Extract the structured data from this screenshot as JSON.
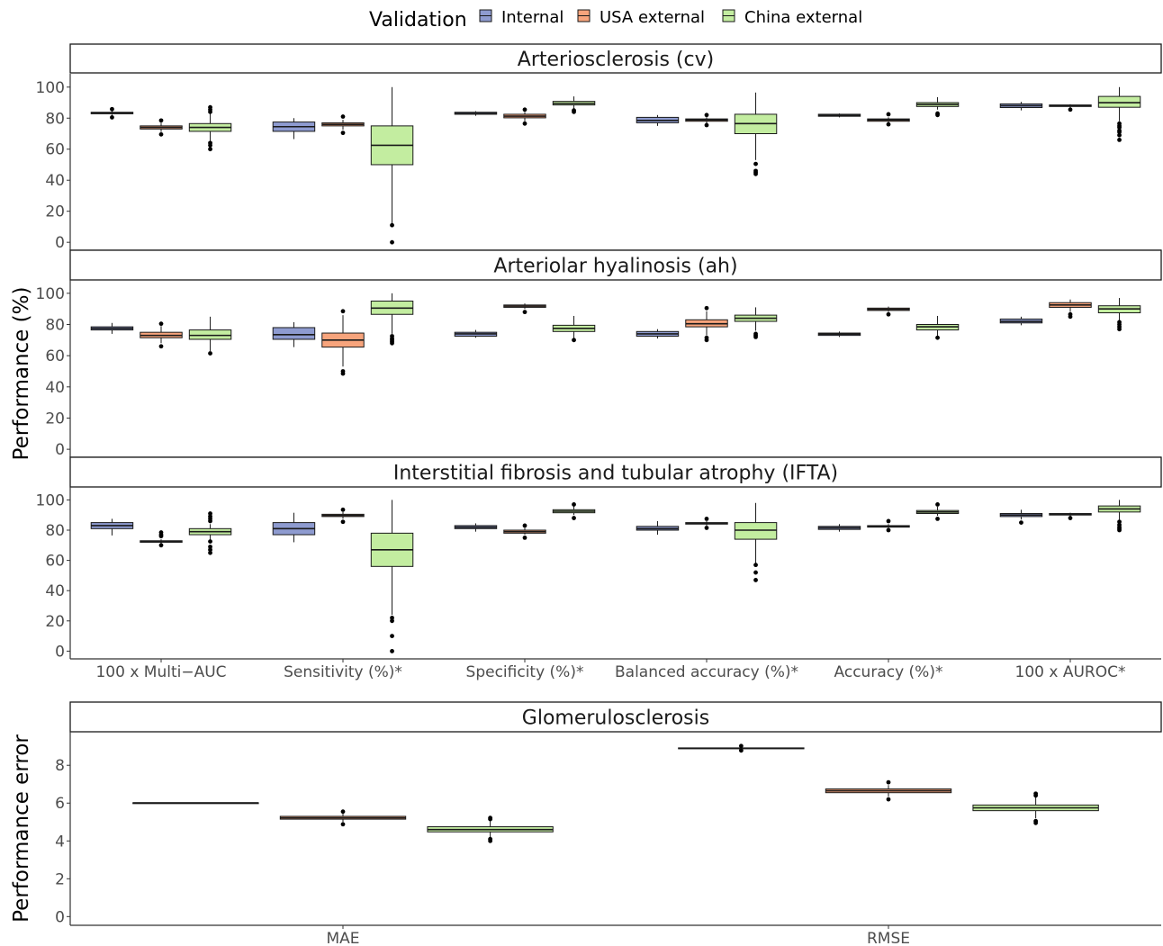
{
  "legend": {
    "title": "Validation",
    "entries": [
      {
        "label": "Internal",
        "color": "#8e9bd0"
      },
      {
        "label": "USA external",
        "color": "#f7a47c"
      },
      {
        "label": "China external",
        "color": "#c3eda0"
      }
    ]
  },
  "chart_data": [
    {
      "type": "boxplot",
      "title": "Arteriosclerosis (cv)",
      "ylabel": "",
      "ylim": [
        0,
        100
      ],
      "yticks": [
        0,
        20,
        40,
        60,
        80,
        100
      ],
      "categories": [
        "100 x Multi−AUC",
        "Sensitivity (%)*",
        "Specificity (%)*",
        "Balanced accuracy (%)*",
        "Accuracy (%)*",
        "100 x AUROC*"
      ],
      "show_xticks": false,
      "series": [
        {
          "name": "Internal",
          "boxes": [
            {
              "q1": 82.8,
              "median": 83.3,
              "q3": 83.8,
              "lo": 82,
              "hi": 84.5,
              "out": [
                80.5,
                85.8
              ]
            },
            {
              "q1": 71.5,
              "median": 74.5,
              "q3": 77.5,
              "lo": 66.5,
              "hi": 80,
              "out": []
            },
            {
              "q1": 82.5,
              "median": 83,
              "q3": 83.8,
              "lo": 81.5,
              "hi": 84.5,
              "out": []
            },
            {
              "q1": 77,
              "median": 78.5,
              "q3": 80.5,
              "lo": 75,
              "hi": 82,
              "out": []
            },
            {
              "q1": 81.2,
              "median": 81.8,
              "q3": 82.5,
              "lo": 80.5,
              "hi": 83,
              "out": []
            },
            {
              "q1": 86.8,
              "median": 88,
              "q3": 89.2,
              "lo": 85,
              "hi": 90.5,
              "out": []
            }
          ]
        },
        {
          "name": "USA external",
          "boxes": [
            {
              "q1": 73,
              "median": 74,
              "q3": 75,
              "lo": 71,
              "hi": 77,
              "out": [
                69.5,
                78.5
              ]
            },
            {
              "q1": 75,
              "median": 76,
              "q3": 77,
              "lo": 72.5,
              "hi": 79,
              "out": [
                70.5,
                81
              ]
            },
            {
              "q1": 80.2,
              "median": 81.3,
              "q3": 82.5,
              "lo": 78,
              "hi": 84,
              "out": [
                76.5,
                85.5
              ]
            },
            {
              "q1": 78,
              "median": 78.8,
              "q3": 79.5,
              "lo": 76.5,
              "hi": 80.5,
              "out": [
                75.5,
                82
              ]
            },
            {
              "q1": 78,
              "median": 78.8,
              "q3": 79.5,
              "lo": 77,
              "hi": 80.5,
              "out": [
                76,
                82.5
              ]
            },
            {
              "q1": 87.5,
              "median": 88,
              "q3": 88.5,
              "lo": 86.8,
              "hi": 89,
              "out": [
                85.5
              ]
            }
          ]
        },
        {
          "name": "China external",
          "boxes": [
            {
              "q1": 71.5,
              "median": 74,
              "q3": 76.5,
              "lo": 65,
              "hi": 83,
              "out": [
                60,
                62.5,
                64,
                84,
                85.5,
                87
              ]
            },
            {
              "q1": 50,
              "median": 62.5,
              "q3": 75,
              "lo": 12,
              "hi": 100,
              "out": [
                11,
                0
              ]
            },
            {
              "q1": 88.5,
              "median": 89.5,
              "q3": 90.8,
              "lo": 86,
              "hi": 94,
              "out": [
                84,
                85
              ]
            },
            {
              "q1": 70,
              "median": 76.5,
              "q3": 82.5,
              "lo": 53,
              "hi": 96.5,
              "out": [
                44,
                45,
                46,
                50.5
              ]
            },
            {
              "q1": 87.5,
              "median": 88.8,
              "q3": 90,
              "lo": 85.5,
              "hi": 93.5,
              "out": [
                82,
                83
              ]
            },
            {
              "q1": 87,
              "median": 90,
              "q3": 94,
              "lo": 78,
              "hi": 100,
              "out": [
                66,
                69,
                71,
                72,
                74,
                75,
                76.5
              ]
            }
          ]
        }
      ]
    },
    {
      "type": "boxplot",
      "title": "Arteriolar hyalinosis (ah)",
      "ylabel": "Performance (%)",
      "ylim": [
        0,
        100
      ],
      "yticks": [
        0,
        20,
        40,
        60,
        80,
        100
      ],
      "categories": [
        "100 x Multi−AUC",
        "Sensitivity (%)*",
        "Specificity (%)*",
        "Balanced accuracy (%)*",
        "Accuracy (%)*",
        "100 x AUROC*"
      ],
      "show_xticks": false,
      "series": [
        {
          "name": "Internal",
          "boxes": [
            {
              "q1": 76.5,
              "median": 77.5,
              "q3": 78.5,
              "lo": 74,
              "hi": 81,
              "out": []
            },
            {
              "q1": 70.5,
              "median": 73.5,
              "q3": 78,
              "lo": 65.5,
              "hi": 81.5,
              "out": []
            },
            {
              "q1": 72.5,
              "median": 74,
              "q3": 75,
              "lo": 71.5,
              "hi": 76.5,
              "out": []
            },
            {
              "q1": 72.5,
              "median": 74,
              "q3": 75.5,
              "lo": 71,
              "hi": 77,
              "out": []
            },
            {
              "q1": 73,
              "median": 73.8,
              "q3": 74.5,
              "lo": 72,
              "hi": 75.5,
              "out": []
            },
            {
              "q1": 81,
              "median": 82,
              "q3": 83.5,
              "lo": 79.5,
              "hi": 85,
              "out": []
            }
          ]
        },
        {
          "name": "USA external",
          "boxes": [
            {
              "q1": 71.5,
              "median": 73,
              "q3": 75,
              "lo": 68,
              "hi": 79,
              "out": [
                66,
                80.5
              ]
            },
            {
              "q1": 65.5,
              "median": 70,
              "q3": 74.5,
              "lo": 53,
              "hi": 86,
              "out": [
                48.5,
                50,
                88.5
              ]
            },
            {
              "q1": 91,
              "median": 91.8,
              "q3": 92.5,
              "lo": 90,
              "hi": 93.5,
              "out": [
                88
              ]
            },
            {
              "q1": 78.5,
              "median": 80.5,
              "q3": 83,
              "lo": 73,
              "hi": 88.5,
              "out": [
                70,
                71.5,
                90.5
              ]
            },
            {
              "q1": 89,
              "median": 89.8,
              "q3": 90.5,
              "lo": 88,
              "hi": 91.5,
              "out": [
                86.5
              ]
            },
            {
              "q1": 91,
              "median": 92.5,
              "q3": 94,
              "lo": 88,
              "hi": 96,
              "out": [
                85,
                86.5
              ]
            }
          ]
        },
        {
          "name": "China external",
          "boxes": [
            {
              "q1": 70.5,
              "median": 73,
              "q3": 76.5,
              "lo": 63,
              "hi": 85,
              "out": [
                61.5
              ]
            },
            {
              "q1": 86.5,
              "median": 90.5,
              "q3": 95,
              "lo": 74,
              "hi": 100,
              "out": [
                68,
                69,
                70,
                71,
                72.5
              ]
            },
            {
              "q1": 75.5,
              "median": 77.5,
              "q3": 79.5,
              "lo": 71,
              "hi": 85.5,
              "out": [
                70
              ]
            },
            {
              "q1": 82,
              "median": 84,
              "q3": 86,
              "lo": 76,
              "hi": 91,
              "out": [
                72,
                73,
                74
              ]
            },
            {
              "q1": 76.5,
              "median": 78.5,
              "q3": 80,
              "lo": 72.5,
              "hi": 85.5,
              "out": [
                71.5
              ]
            },
            {
              "q1": 87.5,
              "median": 90,
              "q3": 92,
              "lo": 81,
              "hi": 97,
              "out": [
                77,
                78.5,
                80,
                81.5
              ]
            }
          ]
        }
      ]
    },
    {
      "type": "boxplot",
      "title": "Interstitial fibrosis and tubular atrophy (IFTA)",
      "ylabel": "",
      "ylim": [
        0,
        100
      ],
      "yticks": [
        0,
        20,
        40,
        60,
        80,
        100
      ],
      "categories": [
        "100 x Multi−AUC",
        "Sensitivity (%)*",
        "Specificity (%)*",
        "Balanced accuracy (%)*",
        "Accuracy (%)*",
        "100 x AUROC*"
      ],
      "show_xticks": true,
      "series": [
        {
          "name": "Internal",
          "boxes": [
            {
              "q1": 81,
              "median": 83,
              "q3": 85,
              "lo": 76.5,
              "hi": 87.5,
              "out": []
            },
            {
              "q1": 77,
              "median": 81,
              "q3": 85,
              "lo": 72,
              "hi": 91.5,
              "out": []
            },
            {
              "q1": 81,
              "median": 82,
              "q3": 83,
              "lo": 79,
              "hi": 84.5,
              "out": []
            },
            {
              "q1": 80,
              "median": 81,
              "q3": 82.5,
              "lo": 77,
              "hi": 86,
              "out": []
            },
            {
              "q1": 80.5,
              "median": 81.5,
              "q3": 82.5,
              "lo": 79,
              "hi": 84,
              "out": []
            },
            {
              "q1": 89,
              "median": 90,
              "q3": 91,
              "lo": 87,
              "hi": 93.5,
              "out": [
                85
              ]
            }
          ]
        },
        {
          "name": "USA external",
          "boxes": [
            {
              "q1": 72,
              "median": 72.5,
              "q3": 73,
              "lo": 71,
              "hi": 74,
              "out": [
                70,
                76,
                77,
                78.5
              ]
            },
            {
              "q1": 89,
              "median": 89.8,
              "q3": 90.5,
              "lo": 87.5,
              "hi": 92,
              "out": [
                85.5,
                93.5
              ]
            },
            {
              "q1": 78,
              "median": 79,
              "q3": 80,
              "lo": 77,
              "hi": 81.5,
              "out": [
                75,
                83
              ]
            },
            {
              "q1": 84,
              "median": 84.5,
              "q3": 85,
              "lo": 83,
              "hi": 86,
              "out": [
                81.5,
                87.5
              ]
            },
            {
              "q1": 82,
              "median": 82.5,
              "q3": 83,
              "lo": 81,
              "hi": 84,
              "out": [
                80,
                86
              ]
            },
            {
              "q1": 90,
              "median": 90.5,
              "q3": 91,
              "lo": 89,
              "hi": 91.5,
              "out": [
                88
              ]
            }
          ]
        },
        {
          "name": "China external",
          "boxes": [
            {
              "q1": 77,
              "median": 79,
              "q3": 81,
              "lo": 72,
              "hi": 84,
              "out": [
                65,
                67,
                69,
                72.5,
                86,
                87.5,
                89,
                91
              ]
            },
            {
              "q1": 56,
              "median": 67,
              "q3": 78,
              "lo": 24,
              "hi": 100,
              "out": [
                22,
                20,
                10,
                0
              ]
            },
            {
              "q1": 91.5,
              "median": 92.5,
              "q3": 93.5,
              "lo": 90,
              "hi": 96,
              "out": [
                88,
                97
              ]
            },
            {
              "q1": 74,
              "median": 80,
              "q3": 85,
              "lo": 58,
              "hi": 98,
              "out": [
                47,
                52,
                57
              ]
            },
            {
              "q1": 91,
              "median": 92,
              "q3": 93,
              "lo": 89.5,
              "hi": 95.5,
              "out": [
                87.5,
                97
              ]
            },
            {
              "q1": 92,
              "median": 94,
              "q3": 96,
              "lo": 86,
              "hi": 100,
              "out": [
                80,
                81,
                82,
                83.5,
                85.5
              ]
            }
          ]
        }
      ]
    },
    {
      "type": "boxplot",
      "title": "Glomerulosclerosis",
      "ylabel": "Performance error",
      "ylim": [
        0,
        9
      ],
      "yticks": [
        0,
        2,
        4,
        6,
        8
      ],
      "categories": [
        "MAE",
        "RMSE"
      ],
      "show_xticks": true,
      "series": [
        {
          "name": "Internal",
          "boxes": [
            {
              "q1": 6.0,
              "median": 6.01,
              "q3": 6.02,
              "lo": 5.99,
              "hi": 6.03,
              "out": []
            },
            {
              "q1": 8.88,
              "median": 8.9,
              "q3": 8.92,
              "lo": 8.86,
              "hi": 8.95,
              "out": [
                8.78,
                9.02
              ]
            }
          ]
        },
        {
          "name": "USA external",
          "boxes": [
            {
              "q1": 5.15,
              "median": 5.22,
              "q3": 5.3,
              "lo": 5.0,
              "hi": 5.45,
              "out": [
                4.88,
                5.55
              ]
            },
            {
              "q1": 6.55,
              "median": 6.65,
              "q3": 6.75,
              "lo": 6.35,
              "hi": 6.95,
              "out": [
                6.2,
                7.1
              ]
            }
          ]
        },
        {
          "name": "China external",
          "boxes": [
            {
              "q1": 4.48,
              "median": 4.6,
              "q3": 4.75,
              "lo": 4.2,
              "hi": 5.05,
              "out": [
                4.0,
                4.1,
                5.15,
                5.22
              ]
            },
            {
              "q1": 5.6,
              "median": 5.75,
              "q3": 5.9,
              "lo": 5.2,
              "hi": 6.3,
              "out": [
                4.95,
                5.05,
                6.4,
                6.5
              ]
            }
          ]
        }
      ]
    }
  ]
}
